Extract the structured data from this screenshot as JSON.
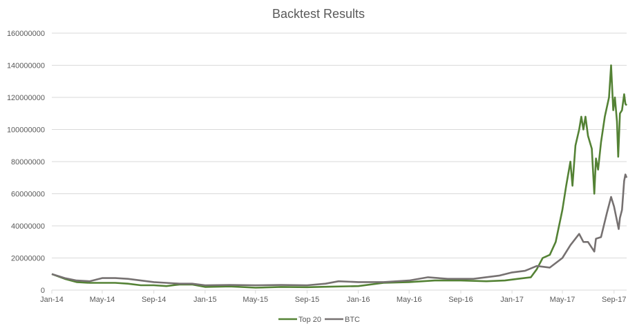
{
  "chart_data": {
    "type": "line",
    "title": "Backtest Results",
    "xlabel": "",
    "ylabel": "",
    "ylim": [
      0,
      160000000
    ],
    "yticks": [
      "0",
      "20000000",
      "40000000",
      "60000000",
      "80000000",
      "100000000",
      "120000000",
      "140000000",
      "160000000"
    ],
    "xticks": [
      "Jan-14",
      "May-14",
      "Sep-14",
      "Jan-15",
      "May-15",
      "Sep-15",
      "Jan-16",
      "May-16",
      "Sep-16",
      "Jan-17",
      "May-17",
      "Sep-17"
    ],
    "xlim": [
      "2014-01-01",
      "2017-10-01"
    ],
    "grid": "horizontal",
    "legend": "bottom",
    "series": [
      {
        "name": "Top 20",
        "color": "#548235",
        "points": [
          [
            "2014-01-01",
            10000000
          ],
          [
            "2014-02-01",
            7000000
          ],
          [
            "2014-03-01",
            5000000
          ],
          [
            "2014-04-01",
            4500000
          ],
          [
            "2014-05-01",
            4500000
          ],
          [
            "2014-06-01",
            4500000
          ],
          [
            "2014-07-01",
            4000000
          ],
          [
            "2014-08-01",
            3000000
          ],
          [
            "2014-09-01",
            3000000
          ],
          [
            "2014-10-01",
            2500000
          ],
          [
            "2014-11-01",
            3500000
          ],
          [
            "2014-12-01",
            3500000
          ],
          [
            "2015-01-01",
            2000000
          ],
          [
            "2015-03-01",
            2300000
          ],
          [
            "2015-05-01",
            1500000
          ],
          [
            "2015-07-01",
            2000000
          ],
          [
            "2015-09-01",
            1800000
          ],
          [
            "2015-11-01",
            2200000
          ],
          [
            "2016-01-01",
            2500000
          ],
          [
            "2016-03-01",
            4500000
          ],
          [
            "2016-05-01",
            5000000
          ],
          [
            "2016-07-01",
            6000000
          ],
          [
            "2016-09-01",
            6000000
          ],
          [
            "2016-11-01",
            5500000
          ],
          [
            "2016-12-15",
            6000000
          ],
          [
            "2017-01-15",
            7000000
          ],
          [
            "2017-02-15",
            8000000
          ],
          [
            "2017-03-01",
            13000000
          ],
          [
            "2017-03-15",
            20000000
          ],
          [
            "2017-04-01",
            22000000
          ],
          [
            "2017-04-15",
            30000000
          ],
          [
            "2017-05-01",
            50000000
          ],
          [
            "2017-05-10",
            65000000
          ],
          [
            "2017-05-20",
            80000000
          ],
          [
            "2017-05-25",
            65000000
          ],
          [
            "2017-06-01",
            90000000
          ],
          [
            "2017-06-10",
            100000000
          ],
          [
            "2017-06-15",
            108000000
          ],
          [
            "2017-06-20",
            100000000
          ],
          [
            "2017-06-25",
            108000000
          ],
          [
            "2017-07-01",
            96000000
          ],
          [
            "2017-07-10",
            88000000
          ],
          [
            "2017-07-16",
            60000000
          ],
          [
            "2017-07-20",
            82000000
          ],
          [
            "2017-07-25",
            75000000
          ],
          [
            "2017-08-01",
            92000000
          ],
          [
            "2017-08-10",
            108000000
          ],
          [
            "2017-08-20",
            120000000
          ],
          [
            "2017-08-25",
            140000000
          ],
          [
            "2017-08-30",
            112000000
          ],
          [
            "2017-09-03",
            120000000
          ],
          [
            "2017-09-08",
            105000000
          ],
          [
            "2017-09-11",
            83000000
          ],
          [
            "2017-09-15",
            110000000
          ],
          [
            "2017-09-20",
            112000000
          ],
          [
            "2017-09-25",
            122000000
          ],
          [
            "2017-09-28",
            116000000
          ],
          [
            "2017-10-01",
            115000000
          ]
        ]
      },
      {
        "name": "BTC",
        "color": "#767171",
        "points": [
          [
            "2014-01-01",
            10000000
          ],
          [
            "2014-02-01",
            7500000
          ],
          [
            "2014-03-01",
            6000000
          ],
          [
            "2014-04-01",
            5500000
          ],
          [
            "2014-05-01",
            7500000
          ],
          [
            "2014-06-01",
            7500000
          ],
          [
            "2014-07-01",
            7000000
          ],
          [
            "2014-08-01",
            6000000
          ],
          [
            "2014-09-01",
            5000000
          ],
          [
            "2014-10-01",
            4500000
          ],
          [
            "2014-11-01",
            4000000
          ],
          [
            "2014-12-01",
            4000000
          ],
          [
            "2015-01-01",
            3000000
          ],
          [
            "2015-03-01",
            3200000
          ],
          [
            "2015-05-01",
            3000000
          ],
          [
            "2015-07-01",
            3200000
          ],
          [
            "2015-09-01",
            3000000
          ],
          [
            "2015-10-15",
            4000000
          ],
          [
            "2015-11-15",
            5500000
          ],
          [
            "2016-01-01",
            5000000
          ],
          [
            "2016-03-01",
            5000000
          ],
          [
            "2016-05-01",
            6000000
          ],
          [
            "2016-06-15",
            8000000
          ],
          [
            "2016-08-01",
            7000000
          ],
          [
            "2016-10-01",
            7000000
          ],
          [
            "2016-12-01",
            9000000
          ],
          [
            "2017-01-01",
            11000000
          ],
          [
            "2017-02-01",
            12000000
          ],
          [
            "2017-03-01",
            15000000
          ],
          [
            "2017-04-01",
            14000000
          ],
          [
            "2017-05-01",
            20000000
          ],
          [
            "2017-05-20",
            28000000
          ],
          [
            "2017-06-10",
            35000000
          ],
          [
            "2017-06-20",
            30000000
          ],
          [
            "2017-07-01",
            30000000
          ],
          [
            "2017-07-16",
            24000000
          ],
          [
            "2017-07-20",
            32000000
          ],
          [
            "2017-08-01",
            33000000
          ],
          [
            "2017-08-15",
            48000000
          ],
          [
            "2017-08-25",
            58000000
          ],
          [
            "2017-09-01",
            52000000
          ],
          [
            "2017-09-12",
            38000000
          ],
          [
            "2017-09-15",
            45000000
          ],
          [
            "2017-09-20",
            50000000
          ],
          [
            "2017-09-25",
            68000000
          ],
          [
            "2017-09-28",
            72000000
          ],
          [
            "2017-10-01",
            70000000
          ]
        ]
      }
    ]
  }
}
